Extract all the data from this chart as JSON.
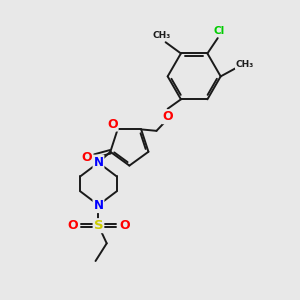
{
  "bg_color": "#e8e8e8",
  "bond_color": "#1a1a1a",
  "atom_colors": {
    "O": "#ff0000",
    "N": "#0000ff",
    "S": "#cccc00",
    "Cl": "#00cc00",
    "C": "#1a1a1a"
  }
}
